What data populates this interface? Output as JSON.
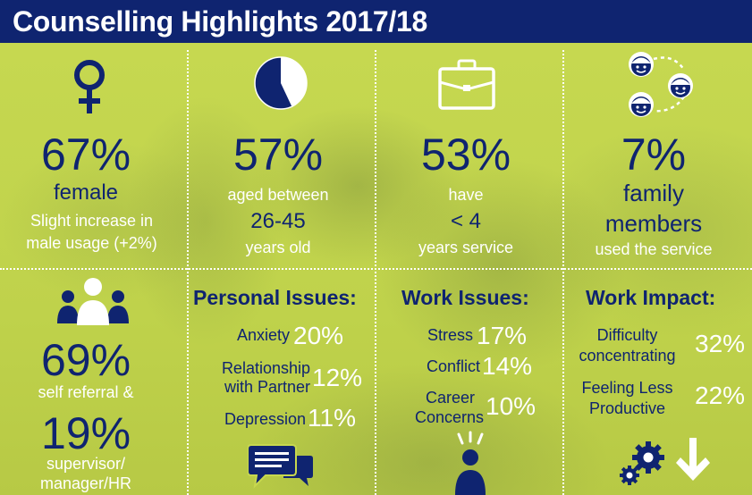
{
  "title": "Counselling Highlights 2017/18",
  "colors": {
    "navy": "#0f2470",
    "lime": "#c7d84e",
    "white": "#ffffff"
  },
  "panels": {
    "female": {
      "icon": "female-symbol-icon",
      "pct": "67%",
      "label": "female",
      "note_line1": "Slight increase in",
      "note_line2": "male usage (+2%)"
    },
    "age": {
      "icon": "pie-chart-icon",
      "pie_fraction": 0.57,
      "pct": "57%",
      "line1": "aged between",
      "range": "26-45",
      "line2": "years old"
    },
    "service": {
      "icon": "briefcase-icon",
      "pct": "53%",
      "line1": "have",
      "range": "< 4",
      "line2": "years service"
    },
    "family": {
      "icon": "family-faces-icon",
      "pct": "7%",
      "line1": "family",
      "line2": "members",
      "line3": "used the service"
    },
    "referral": {
      "icon": "group-people-icon",
      "pct1": "69%",
      "label1": "self referral &",
      "pct2": "19%",
      "label2_line1": "supervisor/",
      "label2_line2": "manager/HR"
    },
    "personal": {
      "heading": "Personal Issues:",
      "items": [
        {
          "label_line1": "Anxiety",
          "label_line2": "",
          "pct": "20%"
        },
        {
          "label_line1": "Relationship",
          "label_line2": "with Partner",
          "pct": "12%"
        },
        {
          "label_line1": "Depression",
          "label_line2": "",
          "pct": "11%"
        }
      ],
      "icon": "speech-bubbles-icon"
    },
    "work": {
      "heading": "Work Issues:",
      "items": [
        {
          "label_line1": "Stress",
          "label_line2": "",
          "pct": "17%"
        },
        {
          "label_line1": "Conflict",
          "label_line2": "",
          "pct": "14%"
        },
        {
          "label_line1": "Career",
          "label_line2": "Concerns",
          "pct": "10%"
        }
      ],
      "icon": "stressed-person-icon"
    },
    "impact": {
      "heading": "Work Impact:",
      "items": [
        {
          "label_line1": "Difficulty",
          "label_line2": "concentrating",
          "pct": "32%"
        },
        {
          "label_line1": "Feeling Less",
          "label_line2": "Productive",
          "pct": "22%"
        }
      ],
      "icon": "gears-down-arrow-icon"
    }
  }
}
